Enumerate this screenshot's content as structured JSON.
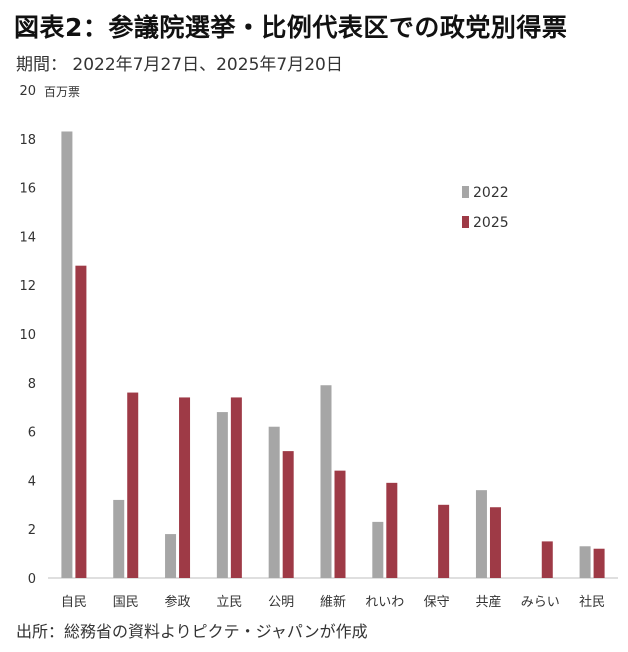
{
  "header": {
    "title": "図表2：参議院選挙・比例代表区での政党別得票",
    "period": "期間： 2022年7月27日、2025年7月20日"
  },
  "footer": {
    "source": "出所：総務省の資料よりピクテ・ジャパンが作成"
  },
  "colors": {
    "series_2022": "#a6a6a6",
    "series_2025": "#9e3a46"
  },
  "chart_data": {
    "type": "bar",
    "unit_label": "百万票",
    "categories": [
      "自民",
      "国民",
      "参政",
      "立民",
      "公明",
      "維新",
      "れいわ",
      "保守",
      "共産",
      "みらい",
      "社民"
    ],
    "series": [
      {
        "name": "2022",
        "values": [
          18.3,
          3.2,
          1.8,
          6.8,
          6.2,
          7.9,
          2.3,
          null,
          3.6,
          null,
          1.3
        ]
      },
      {
        "name": "2025",
        "values": [
          12.8,
          7.6,
          7.4,
          7.4,
          5.2,
          4.4,
          3.9,
          3.0,
          2.9,
          1.5,
          1.2
        ]
      }
    ],
    "ylim": [
      0,
      20
    ],
    "yticks": [
      0,
      2,
      4,
      6,
      8,
      10,
      12,
      14,
      16,
      18,
      20
    ],
    "legend_position": "top-right",
    "grid": false
  }
}
